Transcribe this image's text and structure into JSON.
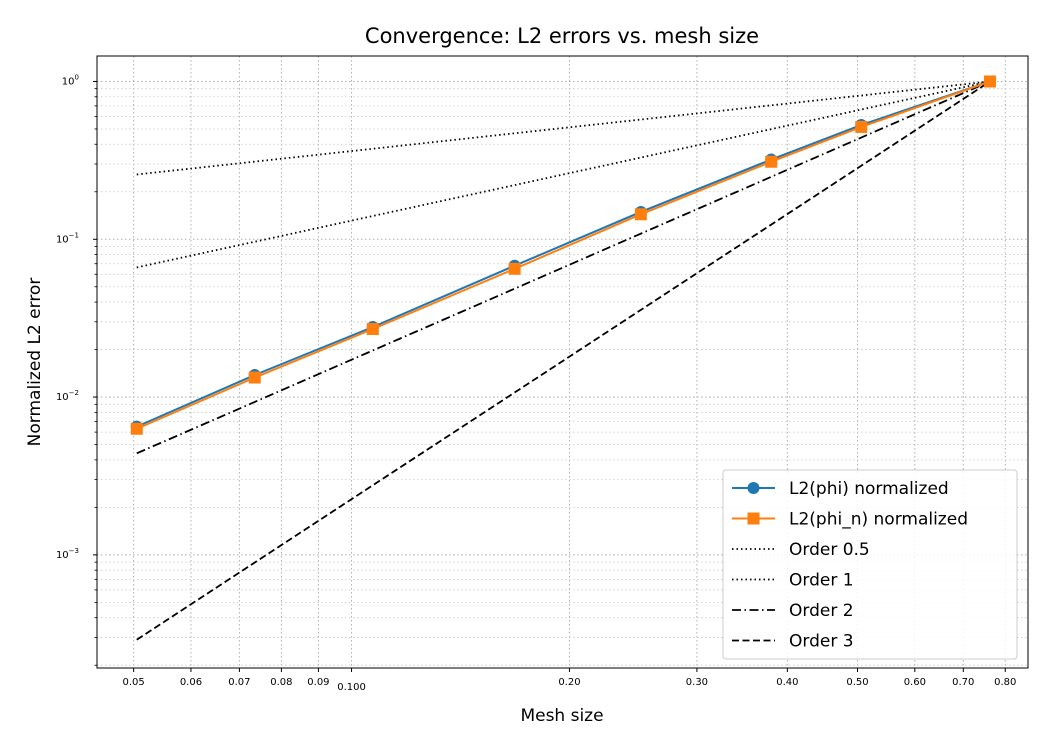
{
  "chart_data": {
    "type": "line",
    "title": "Convergence: L2 errors vs. mesh size",
    "xlabel": "Mesh size",
    "ylabel": "Normalized L2 error",
    "xscale": "log",
    "yscale": "log",
    "xlim": [
      0.0445,
      0.86
    ],
    "ylim": [
      0.000192,
      1.45
    ],
    "grid": "both",
    "legend_position": "lower right",
    "x_ticks": [
      {
        "value": 0.05,
        "label": "0.05"
      },
      {
        "value": 0.06,
        "label": "0.06"
      },
      {
        "value": 0.07,
        "label": "0.07"
      },
      {
        "value": 0.08,
        "label": "0.08"
      },
      {
        "value": 0.09,
        "label": "0.09"
      },
      {
        "value": 0.1,
        "label": "0.100"
      },
      {
        "value": 0.2,
        "label": "0.20"
      },
      {
        "value": 0.3,
        "label": "0.30"
      },
      {
        "value": 0.4,
        "label": "0.40"
      },
      {
        "value": 0.5,
        "label": "0.50"
      },
      {
        "value": 0.6,
        "label": "0.60"
      },
      {
        "value": 0.7,
        "label": "0.70"
      },
      {
        "value": 0.8,
        "label": "0.80"
      }
    ],
    "y_ticks": [
      {
        "value": 0.001,
        "base": "10",
        "exp": "−3"
      },
      {
        "value": 0.01,
        "base": "10",
        "exp": "−2"
      },
      {
        "value": 0.1,
        "base": "10",
        "exp": "−1"
      },
      {
        "value": 1,
        "base": "10",
        "exp": "0"
      }
    ],
    "series": [
      {
        "name": "L2(phi) normalized",
        "color": "#1f77b4",
        "line": "solid",
        "marker": "circle",
        "x": [
          0.0505,
          0.0735,
          0.107,
          0.168,
          0.251,
          0.38,
          0.506,
          0.762
        ],
        "y": [
          0.0065,
          0.0138,
          0.0278,
          0.068,
          0.149,
          0.32,
          0.53,
          1.0
        ]
      },
      {
        "name": "L2(phi_n) normalized",
        "color": "#ff7f0e",
        "line": "solid",
        "marker": "square",
        "x": [
          0.0505,
          0.0735,
          0.107,
          0.168,
          0.251,
          0.38,
          0.506,
          0.762
        ],
        "y": [
          0.0063,
          0.0133,
          0.027,
          0.065,
          0.144,
          0.31,
          0.515,
          1.0
        ]
      },
      {
        "name": "Order 0.5",
        "color": "#000000",
        "line": "dotted",
        "marker": "none",
        "x": [
          0.0505,
          0.762
        ],
        "y": [
          0.2574,
          1.0
        ]
      },
      {
        "name": "Order 1",
        "color": "#000000",
        "line": "dotted",
        "marker": "none",
        "x": [
          0.0505,
          0.762
        ],
        "y": [
          0.0663,
          1.0
        ]
      },
      {
        "name": "Order 2",
        "color": "#000000",
        "line": "dashdot",
        "marker": "none",
        "x": [
          0.0505,
          0.762
        ],
        "y": [
          0.0044,
          1.0
        ]
      },
      {
        "name": "Order 3",
        "color": "#000000",
        "line": "dashed",
        "marker": "none",
        "x": [
          0.0505,
          0.762
        ],
        "y": [
          0.00029,
          1.0
        ]
      }
    ]
  }
}
